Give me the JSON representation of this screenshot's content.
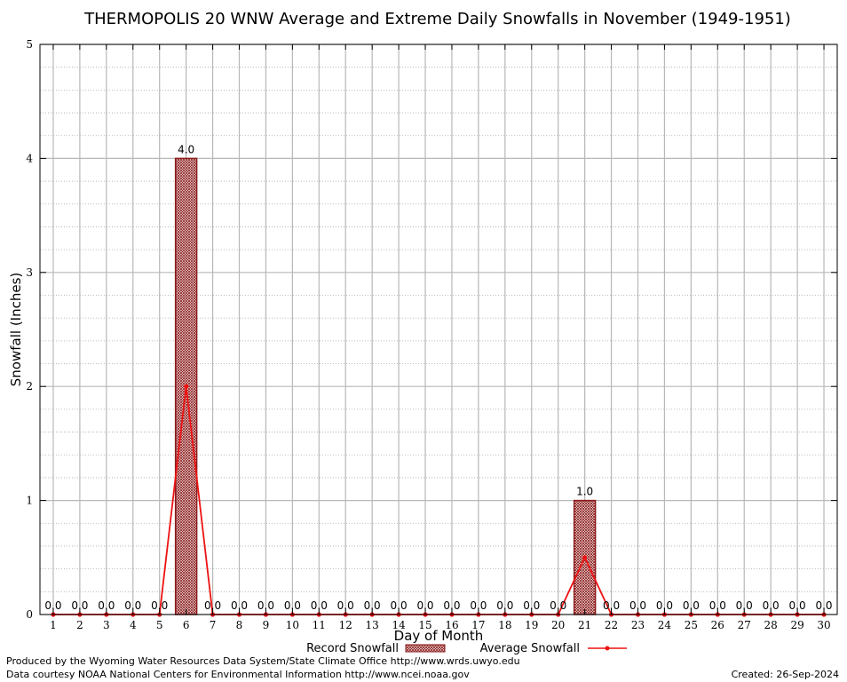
{
  "chart_data": {
    "type": "bar",
    "title": "THERMOPOLIS 20 WNW Average and Extreme Daily Snowfalls in November (1949-1951)",
    "xlabel": "Day of Month",
    "ylabel": "Snowfall (Inches)",
    "ylim": [
      0,
      5
    ],
    "yticks": [
      "0",
      "1",
      "2",
      "3",
      "4",
      "5"
    ],
    "grid": true,
    "legend_position": "bottom",
    "categories": [
      "1",
      "2",
      "3",
      "4",
      "5",
      "6",
      "7",
      "8",
      "9",
      "10",
      "11",
      "12",
      "13",
      "14",
      "15",
      "16",
      "17",
      "18",
      "19",
      "20",
      "21",
      "22",
      "23",
      "24",
      "25",
      "26",
      "27",
      "28",
      "29",
      "30"
    ],
    "series": [
      {
        "name": "Record Snowfall",
        "kind": "bar",
        "color": "#b22222",
        "values": [
          0,
          0,
          0,
          0,
          0,
          4,
          0,
          0,
          0,
          0,
          0,
          0,
          0,
          0,
          0,
          0,
          0,
          0,
          0,
          0,
          1,
          0,
          0,
          0,
          0,
          0,
          0,
          0,
          0,
          0
        ],
        "labels": [
          "0.0",
          "0.0",
          "0.0",
          "0.0",
          "0.0",
          "4.0",
          "0.0",
          "0.0",
          "0.0",
          "0.0",
          "0.0",
          "0.0",
          "0.0",
          "0.0",
          "0.0",
          "0.0",
          "0.0",
          "0.0",
          "0.0",
          "0.0",
          "1.0",
          "0.0",
          "0.0",
          "0.0",
          "0.0",
          "0.0",
          "0.0",
          "0.0",
          "0.0",
          "0.0"
        ]
      },
      {
        "name": "Average Snowfall",
        "kind": "line",
        "color": "#ee1111",
        "values": [
          0,
          0,
          0,
          0,
          0,
          2,
          0,
          0,
          0,
          0,
          0,
          0,
          0,
          0,
          0,
          0,
          0,
          0,
          0,
          0,
          0.5,
          0,
          0,
          0,
          0,
          0,
          0,
          0,
          0,
          0
        ]
      }
    ]
  },
  "footer": {
    "produced_by": "Produced by the Wyoming Water Resources Data System/State Climate Office http://www.wrds.uwyo.edu",
    "data_courtesy": "Data courtesy NOAA National Centers for Environmental Information http://www.ncei.noaa.gov",
    "created": "Created:  26-Sep-2024"
  }
}
